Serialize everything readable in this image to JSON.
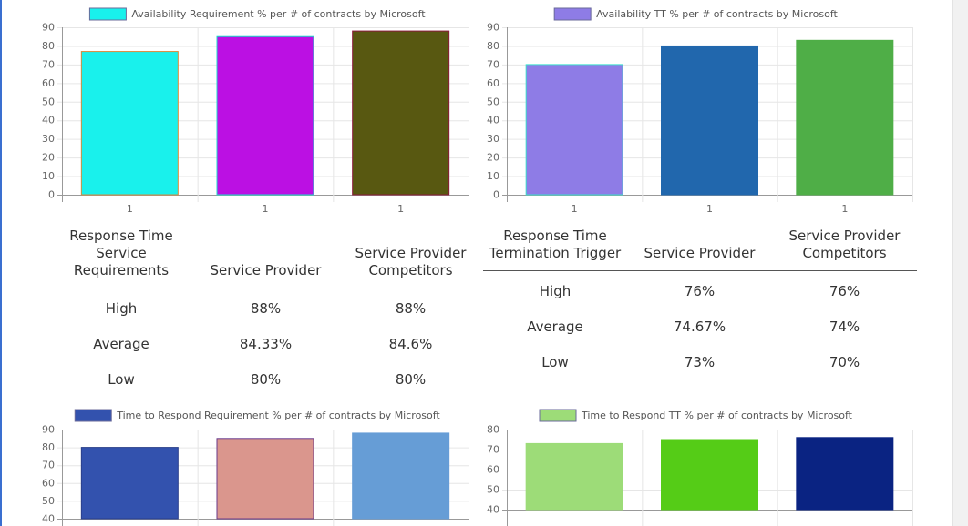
{
  "chart_data": [
    {
      "type": "bar",
      "legend": "Availability Requirement % per # of contracts by Microsoft",
      "categories": [
        "1",
        "1",
        "1"
      ],
      "values": [
        77,
        85,
        88
      ],
      "colors": [
        "#19f1ec",
        "#bb10e3",
        "#585811"
      ],
      "borders": [
        "#d88a3a",
        "#19e0cc",
        "#8b1a3a"
      ],
      "ylim": [
        0,
        90
      ],
      "yticks": [
        0,
        10,
        20,
        30,
        40,
        50,
        60,
        70,
        80,
        90
      ],
      "legend_color": "#19f1ec",
      "grid": true
    },
    {
      "type": "bar",
      "legend": "Availability TT % per # of contracts by Microsoft",
      "categories": [
        "1",
        "1",
        "1"
      ],
      "values": [
        70,
        80,
        83
      ],
      "colors": [
        "#8e7ce6",
        "#2167ad",
        "#4fae47"
      ],
      "borders": [
        "#3ae0cc",
        "#2167ad",
        "#4fae47"
      ],
      "ylim": [
        0,
        90
      ],
      "yticks": [
        0,
        10,
        20,
        30,
        40,
        50,
        60,
        70,
        80,
        90
      ],
      "legend_color": "#8e7ce6",
      "grid": true
    },
    {
      "type": "bar",
      "legend": "Time to Respond Requirement % per # of contracts by Microsoft",
      "values": [
        80,
        85,
        88
      ],
      "colors": [
        "#3352ae",
        "#da968d",
        "#669dd6"
      ],
      "borders": [
        "#2a3f8a",
        "#6a3a8a",
        "#669dd6"
      ],
      "ylim": [
        40,
        90
      ],
      "yticks": [
        40,
        50,
        60,
        70,
        80,
        90
      ],
      "legend_color": "#3352ae",
      "grid": true
    },
    {
      "type": "bar",
      "legend": "Time to Respond TT % per # of contracts by Microsoft",
      "values": [
        73,
        75,
        76
      ],
      "colors": [
        "#9ddc78",
        "#55cc17",
        "#0a2382"
      ],
      "borders": [
        "#9ddc78",
        "#55cc17",
        "#0a2382"
      ],
      "ylim": [
        40,
        80
      ],
      "yticks": [
        40,
        50,
        60,
        70,
        80
      ],
      "legend_color": "#9ddc78",
      "grid": true
    }
  ],
  "tables": {
    "left": {
      "headers": [
        "Response Time Service Requirements",
        "Service Provider",
        "Service Provider Competitors"
      ],
      "rows": [
        [
          "High",
          "88%",
          "88%"
        ],
        [
          "Average",
          "84.33%",
          "84.6%"
        ],
        [
          "Low",
          "80%",
          "80%"
        ]
      ]
    },
    "right": {
      "headers": [
        "Response Time Termination Trigger",
        "Service Provider",
        "Service Provider Competitors"
      ],
      "rows": [
        [
          "High",
          "76%",
          "76%"
        ],
        [
          "Average",
          "74.67%",
          "74%"
        ],
        [
          "Low",
          "73%",
          "70%"
        ]
      ]
    }
  }
}
